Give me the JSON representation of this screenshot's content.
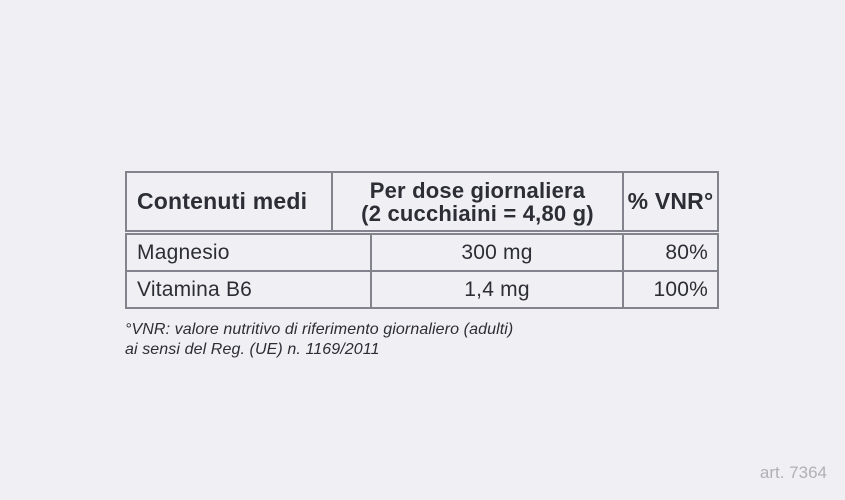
{
  "table": {
    "header": {
      "contents_label": "Contenuti medi",
      "dose_line1": "Per dose giornaliera",
      "dose_line2": "(2 cucchiaini = 4,80 g)",
      "vnr_label": "% VNR°"
    },
    "rows": [
      {
        "name": "Magnesio",
        "amount": "300 mg",
        "vnr_percent": "80%"
      },
      {
        "name": "Vitamina B6",
        "amount": "1,4 mg",
        "vnr_percent": "100%"
      }
    ]
  },
  "footnote": {
    "line1": "°VNR: valore nutritivo di riferimento giornaliero (adulti)",
    "line2": "ai sensi del Reg. (UE) n. 1169/2011"
  },
  "art_number": "art. 7364",
  "colors": {
    "background": "#efeff4",
    "border": "#83838d",
    "text": "#2d2d35",
    "muted_text": "#b0b0b8"
  }
}
